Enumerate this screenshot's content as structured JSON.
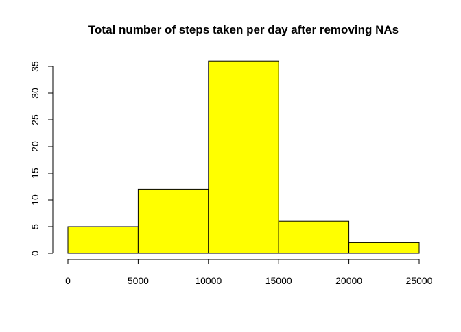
{
  "chart_data": {
    "type": "bar",
    "title": "Total number of steps taken per day after removing NAs",
    "xlabel": "",
    "ylabel": "",
    "bins": [
      {
        "start": 0,
        "end": 5000,
        "count": 5
      },
      {
        "start": 5000,
        "end": 10000,
        "count": 12
      },
      {
        "start": 10000,
        "end": 15000,
        "count": 36
      },
      {
        "start": 15000,
        "end": 20000,
        "count": 6
      },
      {
        "start": 20000,
        "end": 25000,
        "count": 2
      }
    ],
    "xlim": [
      0,
      25000
    ],
    "ylim": [
      0,
      35
    ],
    "x_ticks": [
      0,
      5000,
      10000,
      15000,
      20000,
      25000
    ],
    "x_tick_labels": [
      "0",
      "5000",
      "10000",
      "15000",
      "20000",
      "25000"
    ],
    "y_ticks": [
      0,
      5,
      10,
      15,
      20,
      25,
      30,
      35
    ],
    "y_tick_labels": [
      "0",
      "5",
      "10",
      "15",
      "20",
      "25",
      "30",
      "35"
    ],
    "bar_color": "#ffff00",
    "border_color": "#000000",
    "grid": false,
    "legend": "none"
  }
}
